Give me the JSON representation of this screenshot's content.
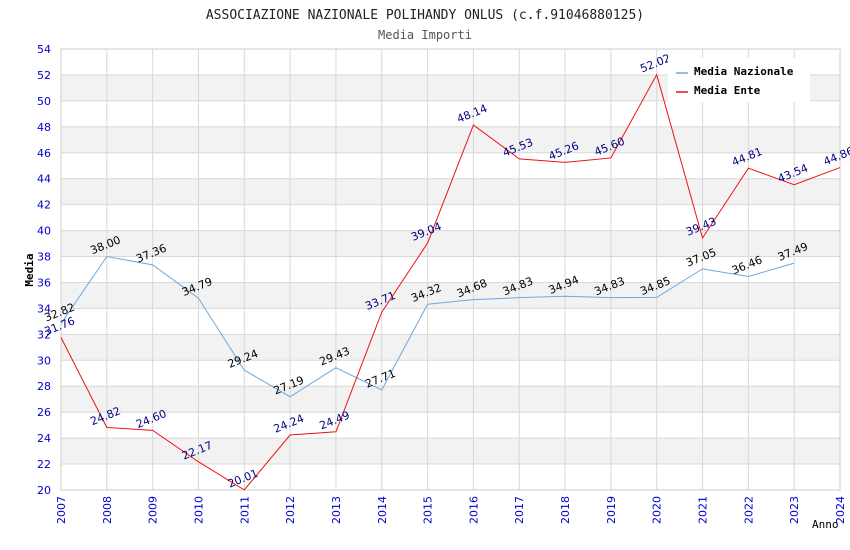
{
  "chart_data": {
    "type": "line",
    "title": "ASSOCIAZIONE NAZIONALE POLIHANDY ONLUS (c.f.91046880125)",
    "subtitle": "Media Importi",
    "xlabel": "Anno",
    "ylabel": "Media",
    "ylim": [
      20,
      54
    ],
    "ytick_step": 2,
    "xlim": [
      2007,
      2024
    ],
    "x": [
      2007,
      2008,
      2009,
      2010,
      2011,
      2012,
      2013,
      2014,
      2015,
      2016,
      2017,
      2018,
      2019,
      2020,
      2021,
      2022,
      2023,
      2024
    ],
    "grid": true,
    "legend_position": "top-right",
    "series": [
      {
        "name": "Media Nazionale",
        "color": "#6fa8dc",
        "label_color": "#000000",
        "values": [
          32.82,
          38.0,
          37.36,
          34.79,
          29.24,
          27.19,
          29.43,
          27.71,
          34.32,
          34.68,
          34.83,
          34.94,
          34.83,
          34.85,
          37.05,
          36.46,
          37.49,
          null
        ],
        "labels": [
          "32.82",
          "38.00",
          "37.36",
          "34.79",
          "29.24",
          "27.19",
          "29.43",
          "27.71",
          "34.32",
          "34.68",
          "34.83",
          "34.94",
          "34.83",
          "34.85",
          "37.05",
          "36.46",
          "37.49",
          null
        ]
      },
      {
        "name": "Media Ente",
        "color": "#ee1111",
        "label_color": "#000080",
        "values": [
          31.76,
          24.82,
          24.6,
          22.17,
          20.01,
          24.24,
          24.49,
          33.71,
          39.04,
          48.14,
          45.53,
          45.26,
          45.6,
          52.02,
          39.43,
          44.81,
          43.54,
          44.86
        ],
        "labels": [
          "31.76",
          "24.82",
          "24.60",
          "22.17",
          "20.01",
          "24.24",
          "24.49",
          "33.71",
          "39.04",
          "48.14",
          "45.53",
          "45.26",
          "45.60",
          "52.02",
          "39.43",
          "44.81",
          "43.54",
          "44.86"
        ]
      }
    ],
    "colors": {
      "tick_label": "#0000cc",
      "grid": "#d8d8d8",
      "band": "#f2f2f2",
      "axis": "#cccccc"
    }
  }
}
